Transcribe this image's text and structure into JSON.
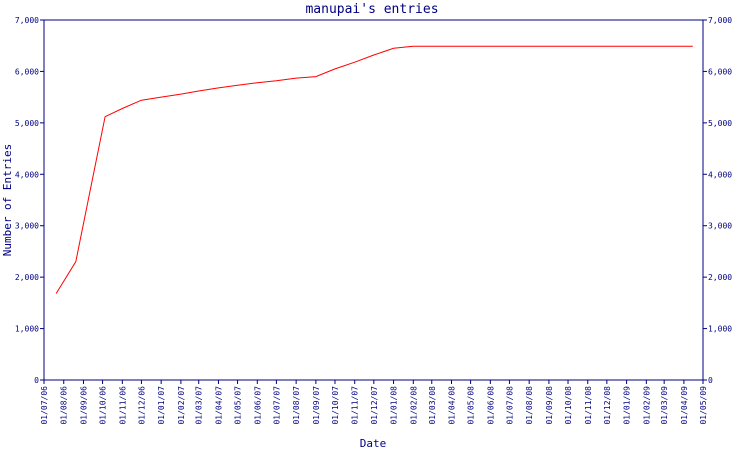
{
  "chart_data": {
    "type": "line",
    "title": "manupai's entries",
    "xlabel": "Date",
    "ylabel": "Number of Entries",
    "ylim": [
      0,
      7000
    ],
    "y_ticks": [
      "0",
      "1,000",
      "2,000",
      "3,000",
      "4,000",
      "5,000",
      "6,000",
      "7,000"
    ],
    "x_ticks": [
      "01/07/06",
      "01/08/06",
      "01/09/06",
      "01/10/06",
      "01/11/06",
      "01/12/06",
      "01/01/07",
      "01/02/07",
      "01/03/07",
      "01/04/07",
      "01/05/07",
      "01/06/07",
      "01/07/07",
      "01/08/07",
      "01/09/07",
      "01/10/07",
      "01/11/07",
      "01/12/07",
      "01/01/08",
      "01/02/08",
      "01/03/08",
      "01/04/08",
      "01/05/08",
      "01/06/08",
      "01/07/08",
      "01/08/08",
      "01/09/08",
      "01/10/08",
      "01/11/08",
      "01/12/08",
      "01/01/09",
      "01/02/09",
      "01/03/09",
      "01/04/09",
      "01/05/09"
    ],
    "grid": false,
    "line_color": "#ff0000",
    "axis_color": "#000080",
    "series": [
      {
        "x": [
          "2006-07-20",
          "2006-08-20",
          "2006-09-15",
          "2006-10-05",
          "2006-11-01",
          "2006-12-01",
          "2007-01-01",
          "2007-02-01",
          "2007-03-01",
          "2007-04-01",
          "2007-05-01",
          "2007-06-01",
          "2007-07-01",
          "2007-08-01",
          "2007-09-01",
          "2007-10-01",
          "2007-11-01",
          "2007-12-01",
          "2008-01-01",
          "2008-02-01",
          "2008-03-01",
          "2008-06-01",
          "2008-09-01",
          "2008-12-01",
          "2009-03-01",
          "2009-04-15"
        ],
        "y": [
          1680,
          2300,
          3900,
          5120,
          5280,
          5440,
          5500,
          5560,
          5620,
          5680,
          5730,
          5780,
          5820,
          5870,
          5900,
          6050,
          6180,
          6320,
          6450,
          6490,
          6490,
          6490,
          6490,
          6490,
          6490,
          6490
        ]
      }
    ]
  }
}
